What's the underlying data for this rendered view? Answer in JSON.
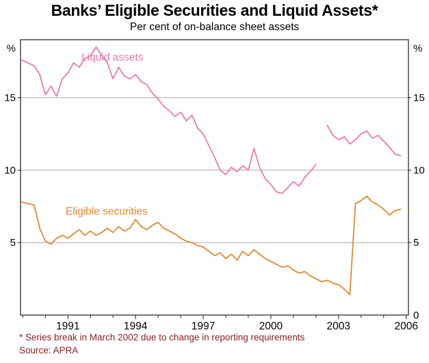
{
  "colors": {
    "liquid": "#ed7aae",
    "eligible": "#e8872e",
    "footnote": "#8b2020",
    "grid": "#ababab",
    "axis": "#1a1a1a",
    "text": "#000000"
  },
  "chart_data": {
    "type": "line",
    "title": "Banks’ Eligible Securities and Liquid Assets*",
    "subtitle": "Per cent of on-balance sheet assets",
    "footnote": "* Series break in March 2002 due to change in reporting requirements",
    "source": "Source: APRA",
    "percent_symbol": "%",
    "xlim": [
      1988.9,
      2006.1
    ],
    "ylim": [
      0,
      19
    ],
    "xticks": [
      1991,
      1994,
      1997,
      2000,
      2003,
      2006
    ],
    "yticks_left": [
      5,
      10,
      15
    ],
    "yticks_right": [
      0,
      5,
      10,
      15
    ],
    "grid": true,
    "legend_position": "inline-labels",
    "x": [
      1988.95,
      1989.5,
      1989.75,
      1990,
      1990.25,
      1990.5,
      1990.75,
      1991,
      1991.25,
      1991.5,
      1991.75,
      1992,
      1992.25,
      1992.5,
      1992.75,
      1993,
      1993.25,
      1993.5,
      1993.75,
      1994,
      1994.25,
      1994.5,
      1994.75,
      1995,
      1995.25,
      1995.5,
      1995.75,
      1996,
      1996.25,
      1996.5,
      1996.75,
      1997,
      1997.25,
      1997.5,
      1997.75,
      1998,
      1998.25,
      1998.5,
      1998.75,
      1999,
      1999.25,
      1999.5,
      1999.75,
      2000,
      2000.25,
      2000.5,
      2000.75,
      2001,
      2001.25,
      2001.5,
      2001.75,
      2002,
      2002.25,
      2002.5,
      2002.75,
      2003,
      2003.25,
      2003.5,
      2003.75,
      2004,
      2004.25,
      2004.5,
      2004.75,
      2005,
      2005.25,
      2005.5,
      2005.75
    ],
    "series": [
      {
        "id": "liquid-assets",
        "name": "Liquid assets",
        "color": "#ed7aae",
        "label_pos": [
          1991.6,
          17.8
        ],
        "values": [
          17.6,
          17.2,
          16.6,
          15.2,
          15.8,
          15.1,
          16.3,
          16.7,
          17.4,
          17.1,
          17.7,
          17.9,
          18.5,
          17.9,
          17.4,
          16.3,
          17.1,
          16.5,
          16.3,
          16.6,
          16.1,
          15.9,
          15.3,
          14.9,
          14.4,
          14.1,
          13.7,
          14.0,
          13.4,
          13.8,
          12.9,
          12.5,
          11.7,
          10.9,
          10.0,
          9.7,
          10.2,
          9.9,
          10.3,
          10.0,
          11.5,
          10.2,
          9.4,
          9.0,
          8.5,
          8.4,
          8.8,
          9.2,
          8.9,
          9.5,
          9.9,
          10.4,
          null,
          13.1,
          12.4,
          12.1,
          12.3,
          11.8,
          12.1,
          12.5,
          12.7,
          12.2,
          12.4,
          12.0,
          11.6,
          11.1,
          11.0
        ]
      },
      {
        "id": "eligible-securities",
        "name": "Eligible securities",
        "color": "#e8872e",
        "label_pos": [
          1990.9,
          7.15
        ],
        "values": [
          7.8,
          7.6,
          6.0,
          5.1,
          4.9,
          5.3,
          5.5,
          5.3,
          5.6,
          5.9,
          5.5,
          5.8,
          5.5,
          5.7,
          6.0,
          5.7,
          6.1,
          5.8,
          6.0,
          6.6,
          6.1,
          5.9,
          6.2,
          6.4,
          6.0,
          5.8,
          5.6,
          5.3,
          5.1,
          5.0,
          4.8,
          4.7,
          4.4,
          4.1,
          4.3,
          3.9,
          4.2,
          3.8,
          4.4,
          4.1,
          4.5,
          4.2,
          3.9,
          3.7,
          3.5,
          3.3,
          3.4,
          3.1,
          2.9,
          3.0,
          2.7,
          2.5,
          2.3,
          2.4,
          2.2,
          2.1,
          1.8,
          1.4,
          7.7,
          7.9,
          8.2,
          7.8,
          7.6,
          7.3,
          6.9,
          7.2,
          7.3
        ]
      }
    ]
  }
}
